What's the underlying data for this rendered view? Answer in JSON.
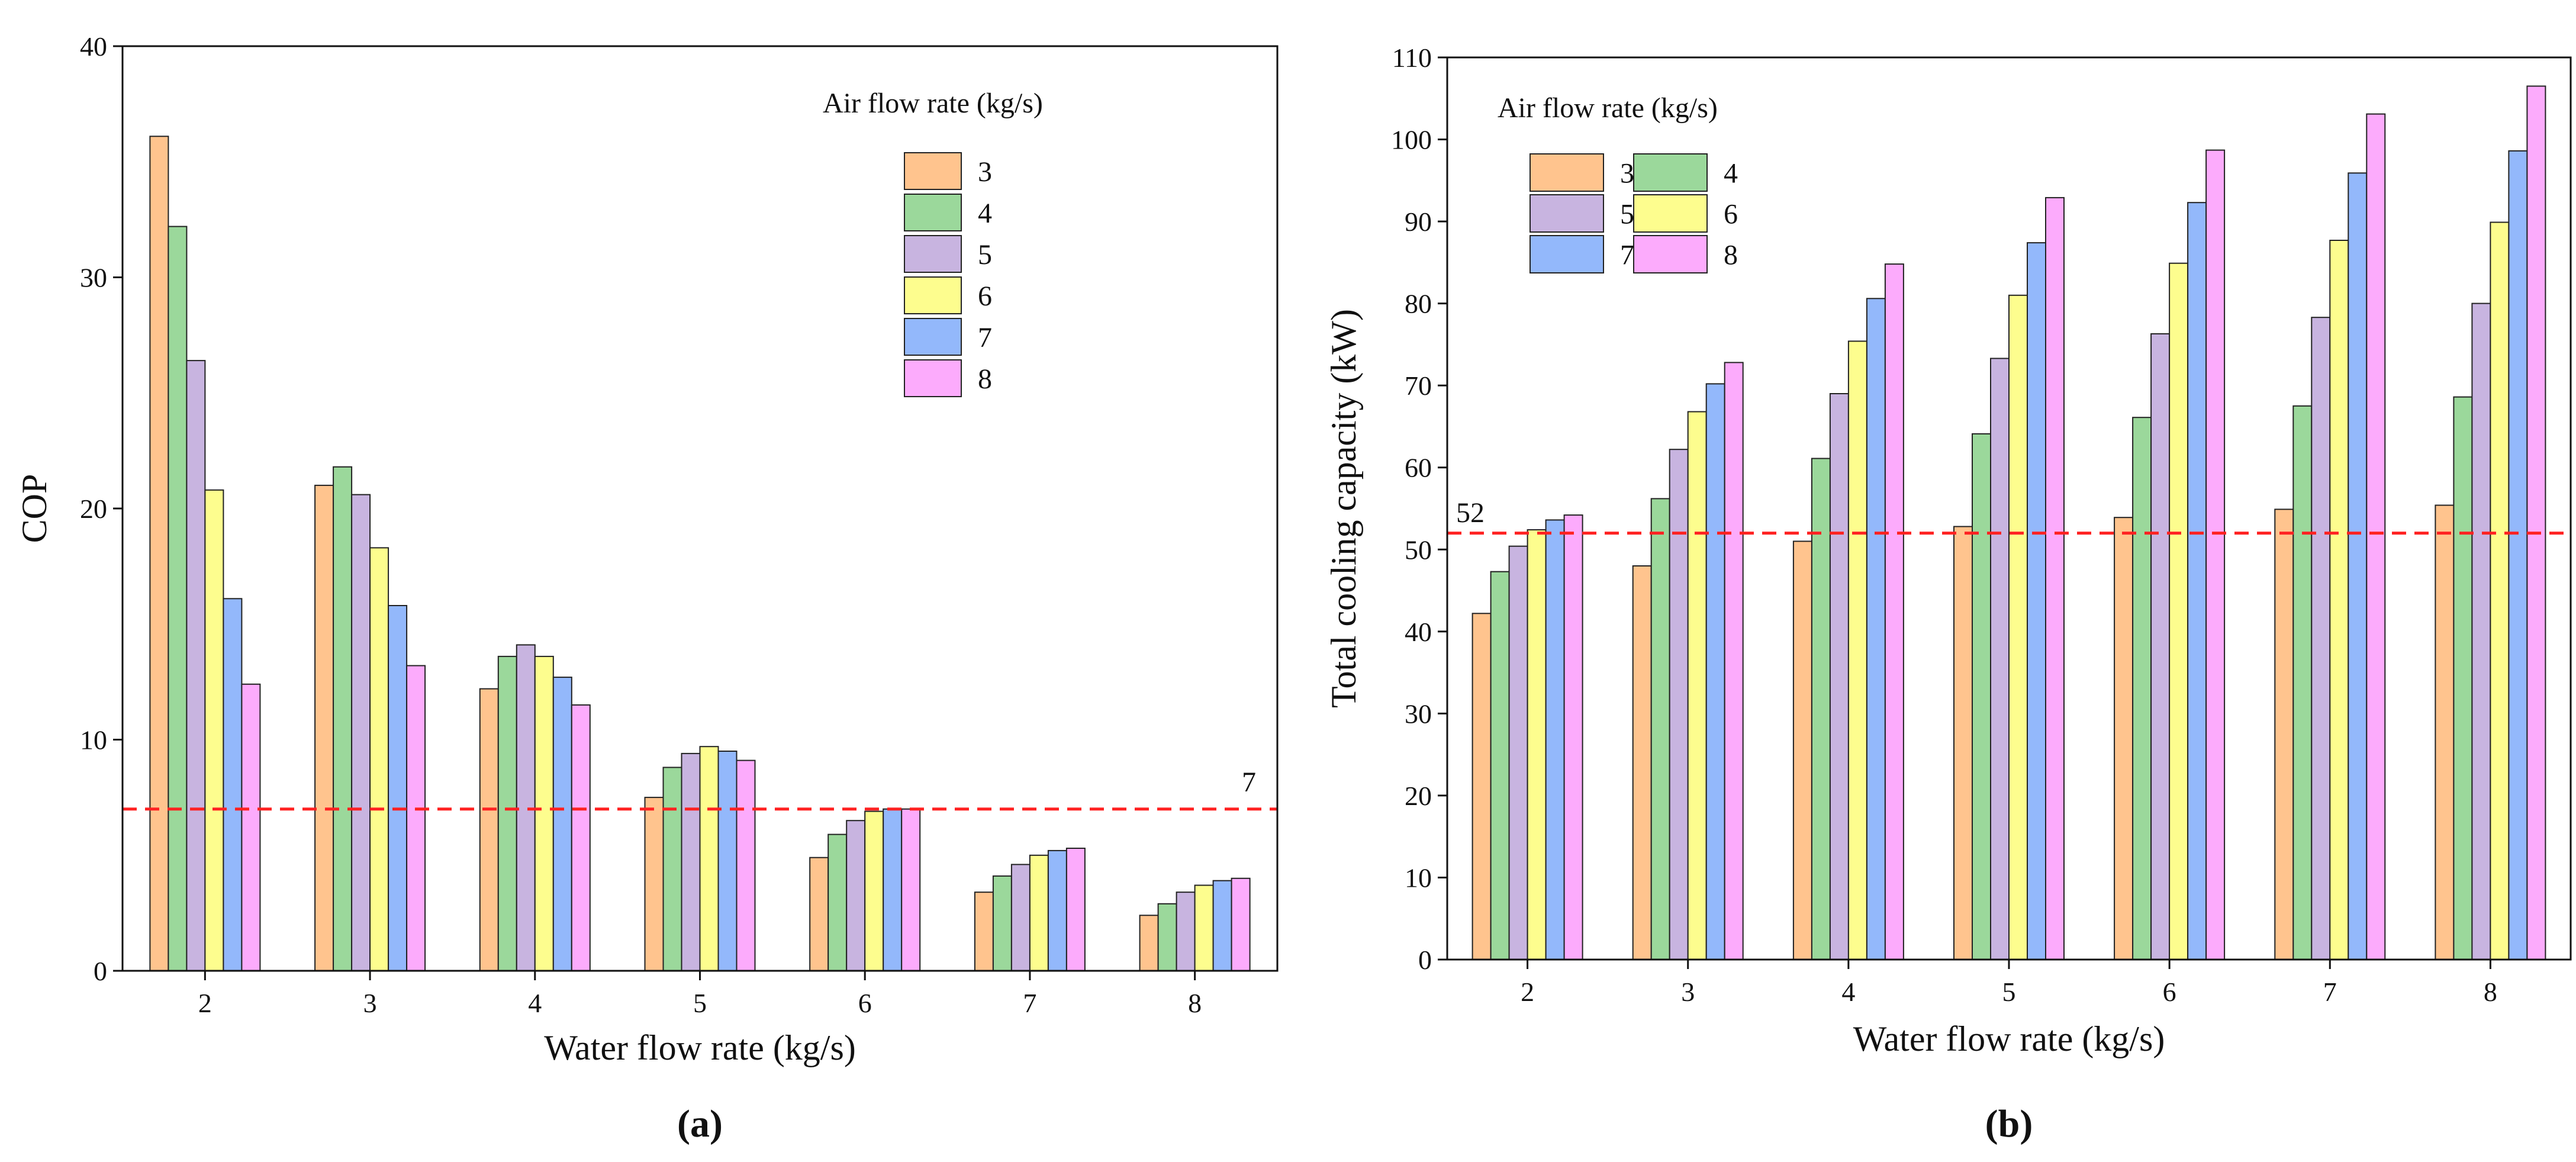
{
  "chart_data": [
    {
      "type": "bar",
      "panel_label": "(a)",
      "title": "",
      "xlabel": "Water flow rate (kg/s)",
      "ylabel": "COP",
      "ylim": [
        0,
        40
      ],
      "yticks": [
        0,
        10,
        20,
        30,
        40
      ],
      "categories": [
        "2",
        "3",
        "4",
        "5",
        "6",
        "7",
        "8"
      ],
      "legend_title": "Air flow rate (kg/s)",
      "legend_layout": "single column, top-right",
      "series": [
        {
          "name": "3",
          "values": [
            36.1,
            21.0,
            12.2,
            7.5,
            4.9,
            3.4,
            2.4
          ]
        },
        {
          "name": "4",
          "values": [
            32.2,
            21.8,
            13.6,
            8.8,
            5.9,
            4.1,
            2.9
          ]
        },
        {
          "name": "5",
          "values": [
            26.4,
            20.6,
            14.1,
            9.4,
            6.5,
            4.6,
            3.4
          ]
        },
        {
          "name": "6",
          "values": [
            20.8,
            18.3,
            13.6,
            9.7,
            6.9,
            5.0,
            3.7
          ]
        },
        {
          "name": "7",
          "values": [
            16.1,
            15.8,
            12.7,
            9.5,
            7.0,
            5.2,
            3.9
          ]
        },
        {
          "name": "8",
          "values": [
            12.4,
            13.2,
            11.5,
            9.1,
            7.0,
            5.3,
            4.0
          ]
        }
      ],
      "reference_line": {
        "value": 7,
        "label": "7",
        "color": "#ff2222",
        "style": "dashed"
      }
    },
    {
      "type": "bar",
      "panel_label": "(b)",
      "title": "",
      "xlabel": "Water flow rate (kg/s)",
      "ylabel": "Total cooling capacity (kW)",
      "ylim": [
        0,
        110
      ],
      "yticks": [
        0,
        10,
        20,
        30,
        40,
        50,
        60,
        70,
        80,
        90,
        100,
        110
      ],
      "categories": [
        "2",
        "3",
        "4",
        "5",
        "6",
        "7",
        "8"
      ],
      "legend_title": "Air flow rate (kg/s)",
      "legend_layout": "two columns, top-left",
      "series": [
        {
          "name": "3",
          "values": [
            42.2,
            48.0,
            51.0,
            52.8,
            53.9,
            54.9,
            55.4
          ]
        },
        {
          "name": "4",
          "values": [
            47.3,
            56.2,
            61.1,
            64.1,
            66.1,
            67.5,
            68.6
          ]
        },
        {
          "name": "5",
          "values": [
            50.4,
            62.2,
            69.0,
            73.3,
            76.3,
            78.3,
            80.0
          ]
        },
        {
          "name": "6",
          "values": [
            52.4,
            66.8,
            75.4,
            81.0,
            84.9,
            87.7,
            89.9
          ]
        },
        {
          "name": "7",
          "values": [
            53.6,
            70.2,
            80.6,
            87.4,
            92.3,
            95.9,
            98.6
          ]
        },
        {
          "name": "8",
          "values": [
            54.2,
            72.8,
            84.8,
            92.9,
            98.7,
            103.1,
            106.5
          ]
        }
      ],
      "reference_line": {
        "value": 52,
        "label": "52",
        "color": "#ff2222",
        "style": "dashed"
      }
    }
  ],
  "series_colors": [
    "#ffc48e",
    "#9bd89b",
    "#c8b4e0",
    "#fdfd8e",
    "#93b8fb",
    "#fcabfc"
  ]
}
